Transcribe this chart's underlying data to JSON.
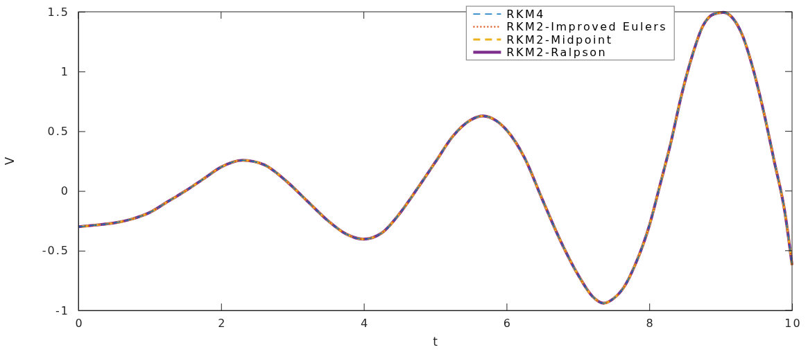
{
  "chart_data": {
    "type": "line",
    "xlabel": "t",
    "ylabel": "V",
    "xlim": [
      0,
      10
    ],
    "ylim": [
      -1,
      1.5
    ],
    "xticks": [
      0,
      2,
      4,
      6,
      8,
      10
    ],
    "yticks": [
      -1,
      -0.5,
      0,
      0.5,
      1,
      1.5
    ],
    "legend": "top right",
    "x": [
      0,
      0.25,
      0.5,
      0.75,
      1.0,
      1.25,
      1.5,
      1.75,
      2.0,
      2.3,
      2.6,
      2.9,
      3.2,
      3.5,
      3.75,
      4.0,
      4.25,
      4.5,
      4.75,
      5.0,
      5.25,
      5.5,
      5.67,
      5.85,
      6.0,
      6.25,
      6.5,
      6.75,
      7.0,
      7.2,
      7.36,
      7.5,
      7.65,
      7.8,
      8.0,
      8.15,
      8.3,
      8.45,
      8.6,
      8.75,
      8.9,
      9.04,
      9.17,
      9.3,
      9.45,
      9.6,
      9.75,
      9.9,
      10
    ],
    "series": [
      {
        "name": "RKM4",
        "color": "#0072bd",
        "line_style": "dashed",
        "values": [
          -0.3,
          -0.285,
          -0.268,
          -0.235,
          -0.18,
          -0.09,
          0.0,
          0.1,
          0.2,
          0.257,
          0.22,
          0.09,
          -0.08,
          -0.25,
          -0.36,
          -0.403,
          -0.352,
          -0.19,
          0.02,
          0.24,
          0.46,
          0.595,
          0.628,
          0.59,
          0.51,
          0.28,
          -0.07,
          -0.41,
          -0.7,
          -0.88,
          -0.94,
          -0.9,
          -0.8,
          -0.62,
          -0.29,
          0.05,
          0.4,
          0.8,
          1.13,
          1.38,
          1.48,
          1.495,
          1.446,
          1.31,
          1.03,
          0.67,
          0.25,
          -0.18,
          -0.62
        ]
      },
      {
        "name": "RKM2-Improved Eulers",
        "color": "#d95319",
        "line_style": "dotted",
        "values": [
          -0.3,
          -0.285,
          -0.268,
          -0.235,
          -0.18,
          -0.09,
          0.0,
          0.1,
          0.2,
          0.257,
          0.22,
          0.09,
          -0.08,
          -0.25,
          -0.36,
          -0.403,
          -0.352,
          -0.19,
          0.02,
          0.24,
          0.46,
          0.595,
          0.628,
          0.59,
          0.51,
          0.28,
          -0.07,
          -0.41,
          -0.7,
          -0.88,
          -0.94,
          -0.9,
          -0.8,
          -0.62,
          -0.29,
          0.05,
          0.4,
          0.8,
          1.13,
          1.38,
          1.48,
          1.495,
          1.446,
          1.31,
          1.03,
          0.67,
          0.25,
          -0.18,
          -0.62
        ]
      },
      {
        "name": "RKM2-Midpoint",
        "color": "#edb120",
        "line_style": "dashed",
        "values": [
          -0.3,
          -0.285,
          -0.268,
          -0.235,
          -0.18,
          -0.09,
          0.0,
          0.1,
          0.2,
          0.257,
          0.22,
          0.09,
          -0.08,
          -0.25,
          -0.36,
          -0.403,
          -0.352,
          -0.19,
          0.02,
          0.24,
          0.46,
          0.595,
          0.628,
          0.59,
          0.51,
          0.28,
          -0.07,
          -0.41,
          -0.7,
          -0.88,
          -0.94,
          -0.9,
          -0.8,
          -0.62,
          -0.29,
          0.05,
          0.4,
          0.8,
          1.13,
          1.38,
          1.48,
          1.495,
          1.446,
          1.31,
          1.03,
          0.67,
          0.25,
          -0.18,
          -0.62
        ]
      },
      {
        "name": "RKM2-Ralpson",
        "color": "#7e2f8e",
        "line_style": "solid",
        "values": [
          -0.3,
          -0.285,
          -0.268,
          -0.235,
          -0.18,
          -0.09,
          0.0,
          0.1,
          0.2,
          0.257,
          0.22,
          0.09,
          -0.08,
          -0.25,
          -0.36,
          -0.403,
          -0.352,
          -0.19,
          0.02,
          0.24,
          0.46,
          0.595,
          0.628,
          0.59,
          0.51,
          0.28,
          -0.07,
          -0.41,
          -0.7,
          -0.88,
          -0.94,
          -0.9,
          -0.8,
          -0.62,
          -0.29,
          0.05,
          0.4,
          0.8,
          1.13,
          1.38,
          1.48,
          1.495,
          1.446,
          1.31,
          1.03,
          0.67,
          0.25,
          -0.18,
          -0.62
        ]
      }
    ]
  }
}
